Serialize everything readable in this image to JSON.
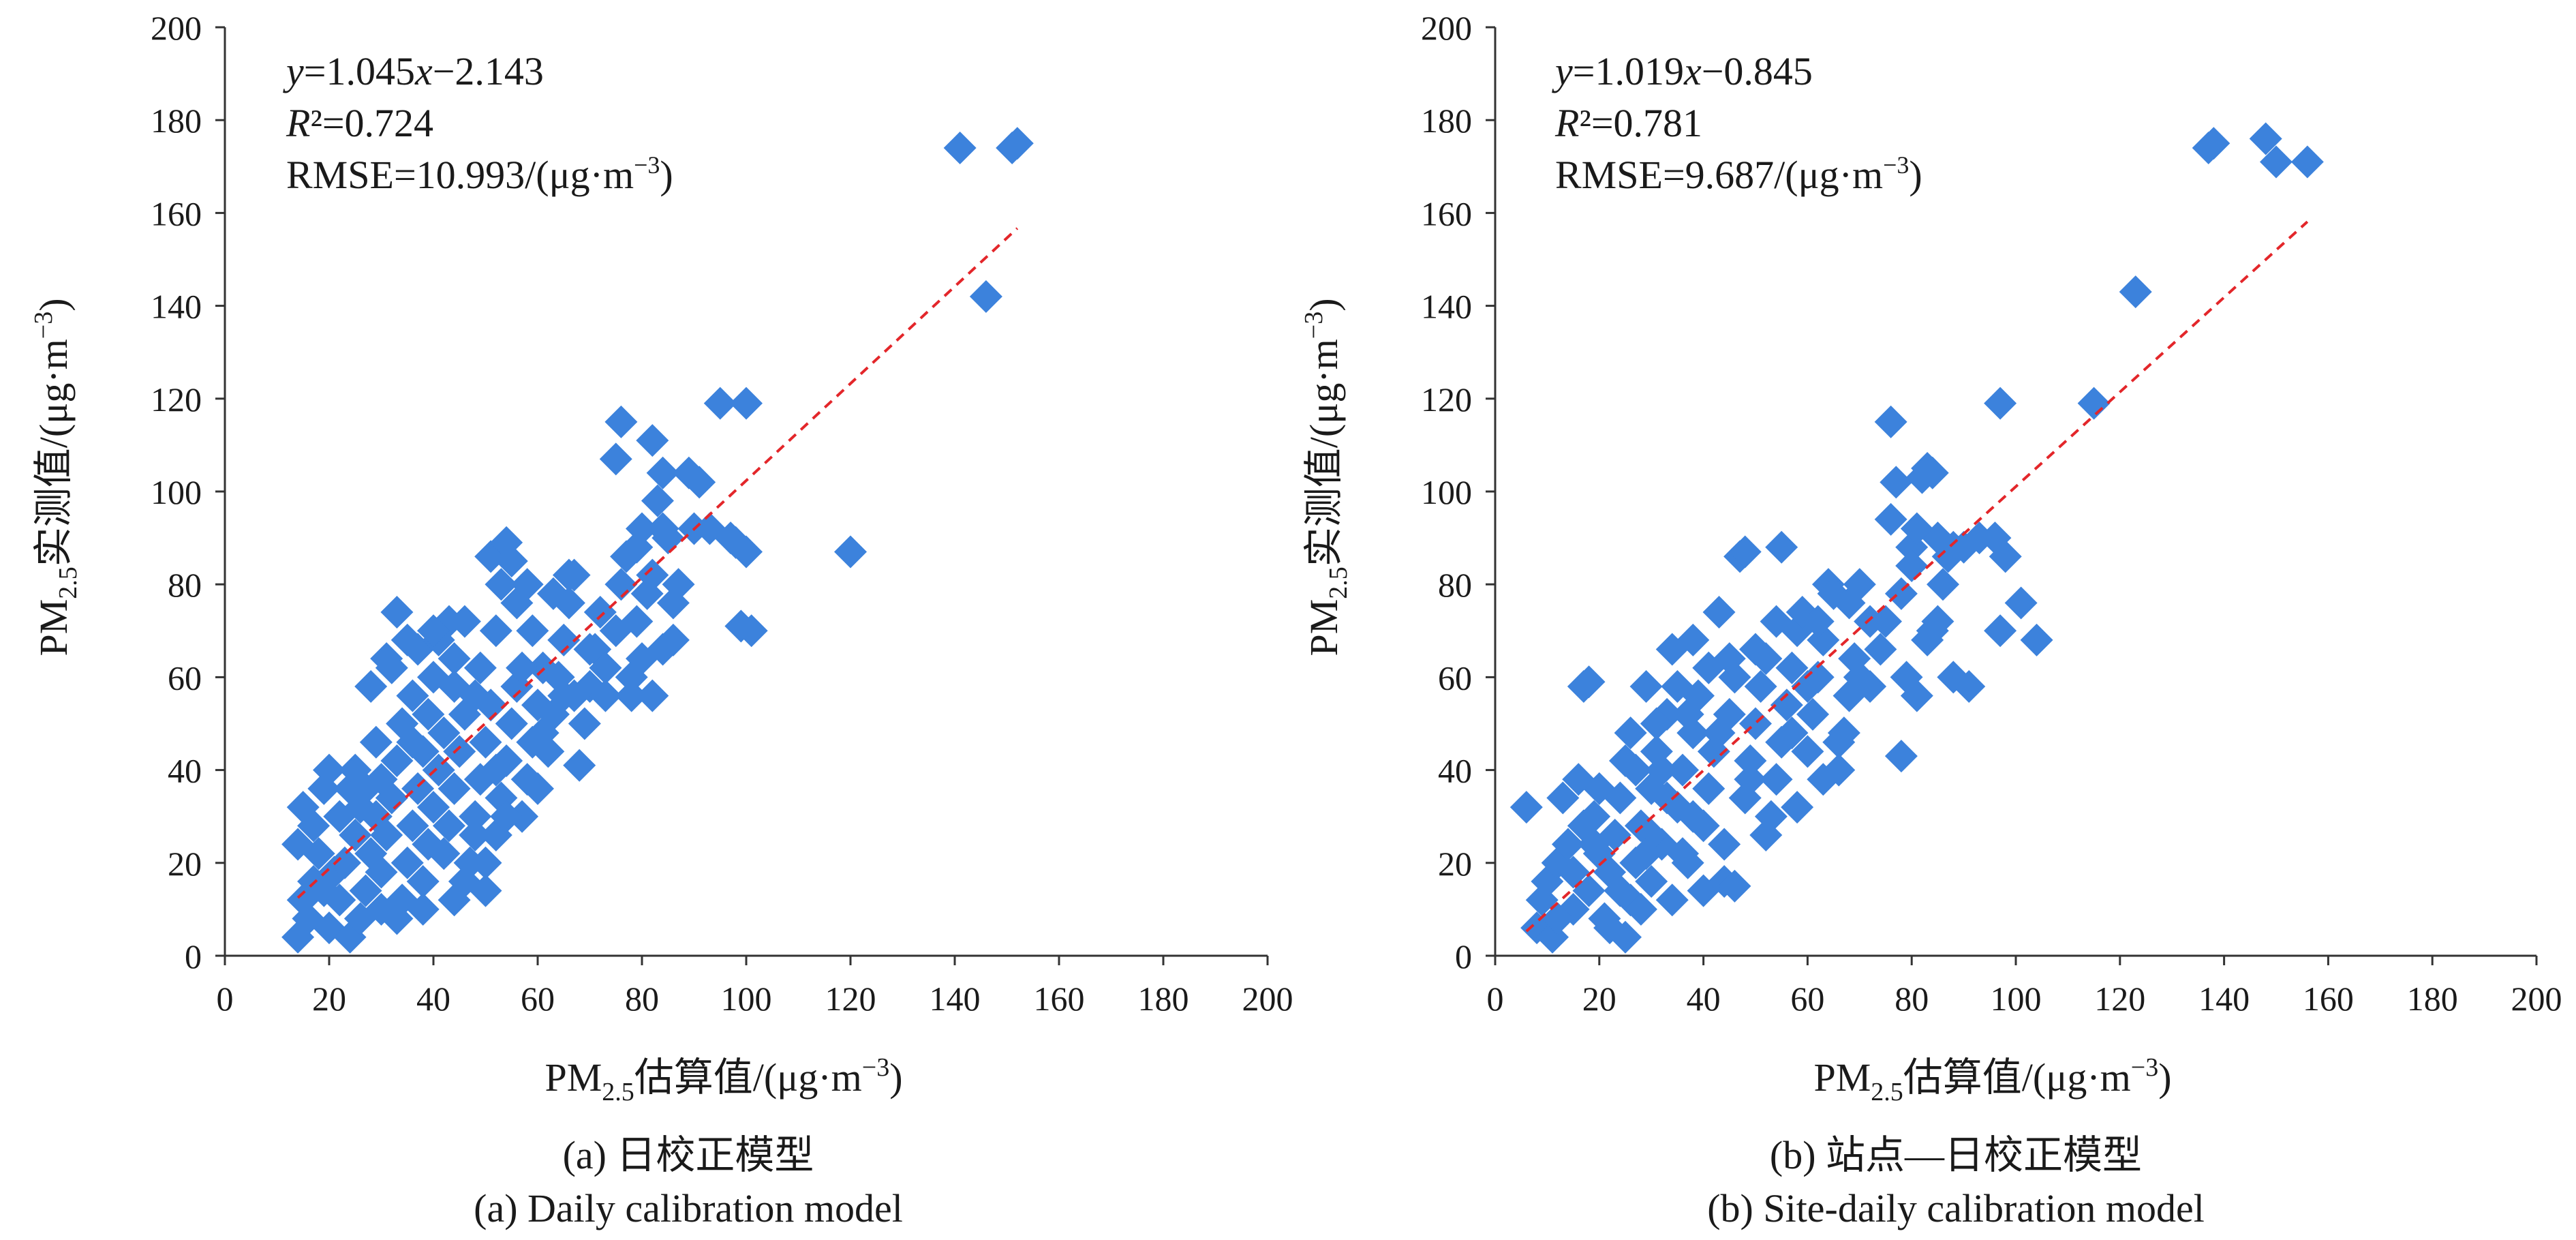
{
  "chart_data": [
    {
      "type": "scatter",
      "panel": "a",
      "caption_zh": "(a) 日校正模型",
      "caption_en": "(a) Daily calibration model",
      "xlabel_prefix": "PM",
      "xlabel_sub": "2.5",
      "xlabel_suffix": "估算值/(μg·m",
      "xlabel_sup": "−3",
      "xlabel_close": ")",
      "ylabel_prefix": "PM",
      "ylabel_sub": "2.5",
      "ylabel_suffix": "实测值/(μg·m",
      "ylabel_sup": "−3",
      "ylabel_close": ")",
      "xlim": [
        0,
        200
      ],
      "ylim": [
        0,
        200
      ],
      "xticks": [
        0,
        20,
        40,
        60,
        80,
        100,
        120,
        140,
        160,
        180,
        200
      ],
      "yticks": [
        0,
        20,
        40,
        60,
        80,
        100,
        120,
        140,
        160,
        180,
        200
      ],
      "equation_y": "y",
      "equation_rest1": "=1.045",
      "equation_x": "x",
      "equation_rest2": "−2.143",
      "r2_r": "R",
      "r2_rest": "²=0.724",
      "rmse_text": "RMSE=10.993/(μg·m",
      "rmse_sup": "−3",
      "rmse_close": ")",
      "fit": {
        "slope": 1.045,
        "intercept": -2.143,
        "x_range": [
          14,
          152
        ]
      },
      "marker_color": "#3c82dc",
      "fit_color": "#e3262a",
      "points": [
        [
          14,
          4
        ],
        [
          16,
          8
        ],
        [
          15,
          12
        ],
        [
          17,
          16
        ],
        [
          14,
          24
        ],
        [
          15,
          32
        ],
        [
          17,
          28
        ],
        [
          19,
          36
        ],
        [
          20,
          40
        ],
        [
          18,
          22
        ],
        [
          21,
          18
        ],
        [
          22,
          12
        ],
        [
          20,
          6
        ],
        [
          24,
          4
        ],
        [
          23,
          20
        ],
        [
          25,
          26
        ],
        [
          26,
          32
        ],
        [
          24,
          36
        ],
        [
          27,
          14
        ],
        [
          28,
          22
        ],
        [
          29,
          30
        ],
        [
          30,
          38
        ],
        [
          28,
          58
        ],
        [
          30,
          18
        ],
        [
          31,
          26
        ],
        [
          32,
          34
        ],
        [
          33,
          42
        ],
        [
          34,
          50
        ],
        [
          32,
          62
        ],
        [
          33,
          74
        ],
        [
          34,
          12
        ],
        [
          35,
          20
        ],
        [
          36,
          28
        ],
        [
          37,
          36
        ],
        [
          38,
          44
        ],
        [
          36,
          56
        ],
        [
          37,
          66
        ],
        [
          38,
          16
        ],
        [
          39,
          24
        ],
        [
          40,
          32
        ],
        [
          41,
          40
        ],
        [
          42,
          48
        ],
        [
          40,
          60
        ],
        [
          41,
          68
        ],
        [
          43,
          28
        ],
        [
          44,
          36
        ],
        [
          45,
          44
        ],
        [
          46,
          52
        ],
        [
          44,
          64
        ],
        [
          43,
          72
        ],
        [
          47,
          20
        ],
        [
          48,
          30
        ],
        [
          49,
          38
        ],
        [
          50,
          46
        ],
        [
          51,
          54
        ],
        [
          49,
          62
        ],
        [
          50,
          14
        ],
        [
          52,
          26
        ],
        [
          53,
          34
        ],
        [
          54,
          42
        ],
        [
          55,
          50
        ],
        [
          56,
          58
        ],
        [
          52,
          70
        ],
        [
          53,
          80
        ],
        [
          51,
          86
        ],
        [
          54,
          89
        ],
        [
          55,
          85
        ],
        [
          56,
          76
        ],
        [
          57,
          30
        ],
        [
          58,
          38
        ],
        [
          59,
          46
        ],
        [
          60,
          54
        ],
        [
          61,
          62
        ],
        [
          59,
          70
        ],
        [
          62,
          44
        ],
        [
          63,
          52
        ],
        [
          64,
          60
        ],
        [
          65,
          68
        ],
        [
          66,
          76
        ],
        [
          67,
          82
        ],
        [
          68,
          41
        ],
        [
          69,
          50
        ],
        [
          70,
          58
        ],
        [
          71,
          66
        ],
        [
          72,
          74
        ],
        [
          73,
          62
        ],
        [
          75,
          70
        ],
        [
          76,
          80
        ],
        [
          77,
          86
        ],
        [
          75,
          107
        ],
        [
          76,
          115
        ],
        [
          78,
          60
        ],
        [
          79,
          72
        ],
        [
          80,
          64
        ],
        [
          81,
          78
        ],
        [
          80,
          92
        ],
        [
          82,
          111
        ],
        [
          83,
          98
        ],
        [
          84,
          104
        ],
        [
          85,
          90
        ],
        [
          86,
          68
        ],
        [
          87,
          80
        ],
        [
          89,
          104
        ],
        [
          91,
          102
        ],
        [
          93,
          92
        ],
        [
          95,
          119
        ],
        [
          98,
          89
        ],
        [
          100,
          119
        ],
        [
          99,
          71
        ],
        [
          101,
          70
        ],
        [
          100,
          87
        ],
        [
          120,
          87
        ],
        [
          141,
          174
        ],
        [
          146,
          142
        ],
        [
          151,
          174
        ],
        [
          152,
          175
        ],
        [
          46,
          16
        ],
        [
          42,
          22
        ],
        [
          38,
          10
        ],
        [
          30,
          10
        ],
        [
          26,
          8
        ],
        [
          48,
          26
        ],
        [
          54,
          30
        ],
        [
          60,
          36
        ],
        [
          57,
          62
        ],
        [
          65,
          56
        ],
        [
          70,
          66
        ],
        [
          46,
          72
        ],
        [
          40,
          70
        ],
        [
          35,
          68
        ],
        [
          31,
          64
        ],
        [
          44,
          58
        ],
        [
          58,
          80
        ],
        [
          63,
          78
        ],
        [
          66,
          82
        ],
        [
          78,
          56
        ],
        [
          82,
          56
        ],
        [
          84,
          66
        ],
        [
          82,
          82
        ],
        [
          86,
          76
        ],
        [
          90,
          92
        ],
        [
          97,
          90
        ],
        [
          25,
          40
        ],
        [
          22,
          30
        ],
        [
          19,
          14
        ],
        [
          33,
          8
        ],
        [
          36,
          46
        ],
        [
          48,
          56
        ],
        [
          52,
          40
        ],
        [
          61,
          48
        ],
        [
          67,
          56
        ],
        [
          73,
          56
        ],
        [
          79,
          88
        ],
        [
          84,
          92
        ],
        [
          50,
          20
        ],
        [
          44,
          12
        ],
        [
          39,
          52
        ],
        [
          29,
          46
        ],
        [
          27,
          36
        ]
      ]
    },
    {
      "type": "scatter",
      "panel": "b",
      "caption_zh": "(b) 站点—日校正模型",
      "caption_en": "(b) Site-daily calibration model",
      "xlabel_prefix": "PM",
      "xlabel_sub": "2.5",
      "xlabel_suffix": "估算值/(μg·m",
      "xlabel_sup": "−3",
      "xlabel_close": ")",
      "ylabel_prefix": "PM",
      "ylabel_sub": "2.5",
      "ylabel_suffix": "实测值/(μg·m",
      "ylabel_sup": "−3",
      "ylabel_close": ")",
      "xlim": [
        0,
        200
      ],
      "ylim": [
        0,
        200
      ],
      "xticks": [
        0,
        20,
        40,
        60,
        80,
        100,
        120,
        140,
        160,
        180,
        200
      ],
      "yticks": [
        0,
        20,
        40,
        60,
        80,
        100,
        120,
        140,
        160,
        180,
        200
      ],
      "equation_y": "y",
      "equation_rest1": "=1.019",
      "equation_x": "x",
      "equation_rest2": "−0.845",
      "r2_r": "R",
      "r2_rest": "²=0.781",
      "rmse_text": "RMSE=9.687/(μg·m",
      "rmse_sup": "−3",
      "rmse_close": ")",
      "fit": {
        "slope": 1.019,
        "intercept": -0.845,
        "x_range": [
          6,
          156
        ]
      },
      "marker_color": "#3c82dc",
      "fit_color": "#e3262a",
      "points": [
        [
          6,
          32
        ],
        [
          8,
          6
        ],
        [
          9,
          12
        ],
        [
          10,
          16
        ],
        [
          11,
          4
        ],
        [
          12,
          20
        ],
        [
          13,
          34
        ],
        [
          14,
          24
        ],
        [
          15,
          10
        ],
        [
          16,
          38
        ],
        [
          17,
          58
        ],
        [
          18,
          59
        ],
        [
          17,
          28
        ],
        [
          18,
          14
        ],
        [
          19,
          30
        ],
        [
          20,
          22
        ],
        [
          21,
          8
        ],
        [
          22,
          18
        ],
        [
          23,
          26
        ],
        [
          24,
          34
        ],
        [
          25,
          4
        ],
        [
          25,
          42
        ],
        [
          26,
          12
        ],
        [
          27,
          20
        ],
        [
          28,
          28
        ],
        [
          29,
          58
        ],
        [
          30,
          36
        ],
        [
          30,
          16
        ],
        [
          31,
          44
        ],
        [
          32,
          24
        ],
        [
          33,
          52
        ],
        [
          34,
          66
        ],
        [
          35,
          32
        ],
        [
          36,
          40
        ],
        [
          37,
          20
        ],
        [
          38,
          48
        ],
        [
          38,
          68
        ],
        [
          39,
          56
        ],
        [
          40,
          28
        ],
        [
          41,
          36
        ],
        [
          42,
          44
        ],
        [
          43,
          74
        ],
        [
          44,
          16
        ],
        [
          45,
          52
        ],
        [
          46,
          60
        ],
        [
          47,
          86
        ],
        [
          48,
          87
        ],
        [
          48,
          34
        ],
        [
          49,
          42
        ],
        [
          50,
          50
        ],
        [
          51,
          58
        ],
        [
          52,
          64
        ],
        [
          53,
          30
        ],
        [
          54,
          38
        ],
        [
          55,
          88
        ],
        [
          55,
          46
        ],
        [
          56,
          54
        ],
        [
          57,
          62
        ],
        [
          58,
          70
        ],
        [
          59,
          74
        ],
        [
          60,
          44
        ],
        [
          61,
          52
        ],
        [
          62,
          60
        ],
        [
          63,
          68
        ],
        [
          64,
          80
        ],
        [
          65,
          78
        ],
        [
          66,
          40
        ],
        [
          67,
          48
        ],
        [
          68,
          56
        ],
        [
          69,
          64
        ],
        [
          70,
          80
        ],
        [
          72,
          72
        ],
        [
          74,
          66
        ],
        [
          76,
          115
        ],
        [
          77,
          102
        ],
        [
          78,
          43
        ],
        [
          79,
          60
        ],
        [
          80,
          88
        ],
        [
          81,
          56
        ],
        [
          82,
          103
        ],
        [
          83,
          105
        ],
        [
          84,
          104
        ],
        [
          85,
          72
        ],
        [
          85,
          90
        ],
        [
          86,
          80
        ],
        [
          88,
          60
        ],
        [
          90,
          88
        ],
        [
          91,
          58
        ],
        [
          93,
          90
        ],
        [
          96,
          90
        ],
        [
          97,
          119
        ],
        [
          97,
          70
        ],
        [
          98,
          86
        ],
        [
          101,
          76
        ],
        [
          104,
          68
        ],
        [
          115,
          119
        ],
        [
          123,
          143
        ],
        [
          137,
          174
        ],
        [
          138,
          175
        ],
        [
          148,
          176
        ],
        [
          150,
          171
        ],
        [
          156,
          171
        ],
        [
          46,
          15
        ],
        [
          40,
          14
        ],
        [
          34,
          12
        ],
        [
          28,
          10
        ],
        [
          22,
          6
        ],
        [
          52,
          26
        ],
        [
          58,
          32
        ],
        [
          63,
          38
        ],
        [
          66,
          46
        ],
        [
          44,
          24
        ],
        [
          36,
          22
        ],
        [
          30,
          26
        ],
        [
          24,
          14
        ],
        [
          72,
          58
        ],
        [
          78,
          78
        ],
        [
          83,
          68
        ],
        [
          87,
          86
        ],
        [
          45,
          64
        ],
        [
          41,
          62
        ],
        [
          35,
          58
        ],
        [
          31,
          50
        ],
        [
          27,
          40
        ],
        [
          57,
          48
        ],
        [
          62,
          72
        ],
        [
          68,
          76
        ],
        [
          76,
          94
        ],
        [
          80,
          84
        ],
        [
          15,
          18
        ],
        [
          12,
          8
        ],
        [
          20,
          36
        ],
        [
          26,
          48
        ],
        [
          32,
          40
        ],
        [
          38,
          30
        ],
        [
          50,
          66
        ],
        [
          54,
          72
        ],
        [
          60,
          58
        ],
        [
          70,
          60
        ],
        [
          75,
          72
        ],
        [
          81,
          92
        ],
        [
          84,
          70
        ],
        [
          88,
          88
        ],
        [
          49,
          38
        ],
        [
          43,
          48
        ],
        [
          37,
          52
        ],
        [
          33,
          34
        ],
        [
          29,
          22
        ],
        [
          19,
          24
        ]
      ]
    }
  ]
}
